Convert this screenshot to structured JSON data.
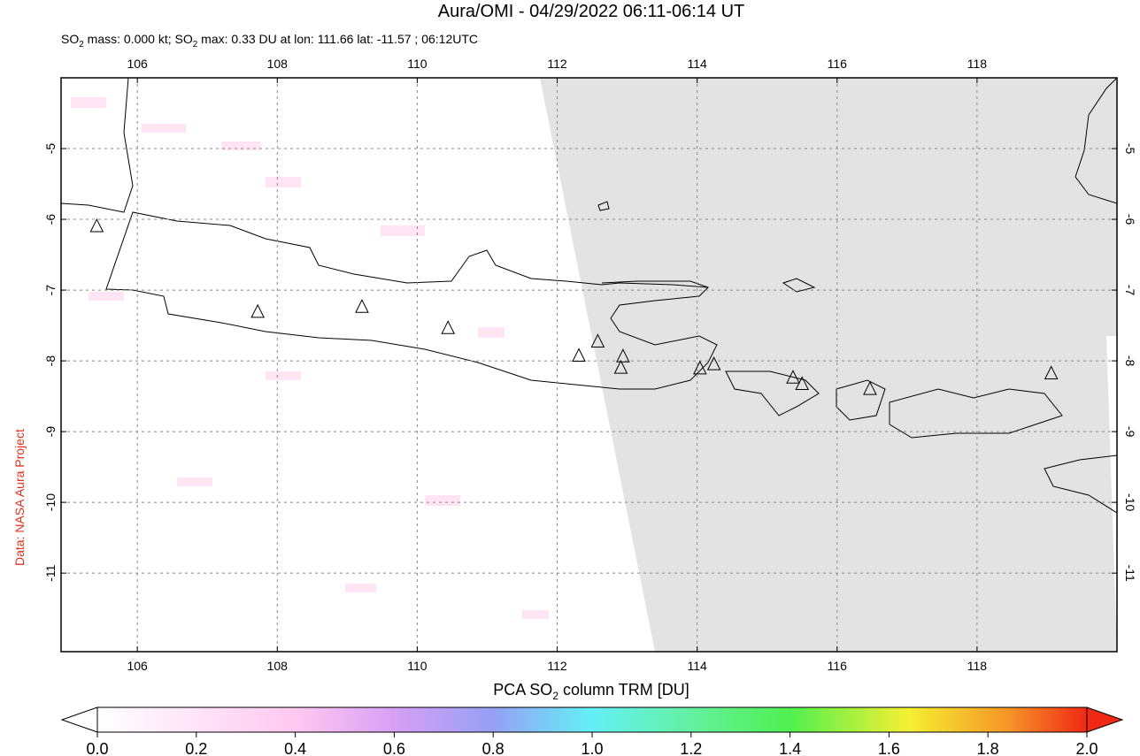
{
  "title": "Aura/OMI - 04/29/2022 06:11-06:14 UT",
  "subtitle": [
    "SO",
    "2",
    " mass: 0.000 kt; SO",
    "2",
    " max: 0.33 DU at lon: 111.66 lat: -11.57 ; 06:12UTC"
  ],
  "credit": "Data: NASA Aura Project",
  "map": {
    "xlim": [
      104.91,
      120.0
    ],
    "ylim": [
      -12.11,
      -4.0
    ],
    "xticks": [
      106,
      108,
      110,
      112,
      114,
      116,
      118
    ],
    "yticks": [
      -5,
      -6,
      -7,
      -8,
      -9,
      -10,
      -11
    ],
    "grid": true,
    "volcanoes": {
      "lon": [
        105.42,
        107.72,
        109.21,
        110.44,
        112.31,
        112.58,
        112.94,
        112.91,
        114.04,
        114.24,
        115.37,
        115.5,
        116.47,
        119.06
      ],
      "lat": [
        -6.1,
        -7.31,
        -7.24,
        -7.54,
        -7.93,
        -7.73,
        -7.94,
        -8.1,
        -8.11,
        -8.05,
        -8.24,
        -8.33,
        -8.4,
        -8.18
      ]
    }
  },
  "colorbar": {
    "label": [
      "PCA SO",
      "2",
      " column TRM [DU]"
    ],
    "lim": [
      0,
      2
    ],
    "ticks": [
      {
        "value": 0,
        "label": "0.0"
      },
      {
        "value": 0.2,
        "label": "0.2"
      },
      {
        "value": 0.4,
        "label": "0.4"
      },
      {
        "value": 0.6,
        "label": "0.6"
      },
      {
        "value": 0.8,
        "label": "0.8"
      },
      {
        "value": 1,
        "label": "1.0"
      },
      {
        "value": 1.2,
        "label": "1.2"
      },
      {
        "value": 1.4,
        "label": "1.4"
      },
      {
        "value": 1.6,
        "label": "1.6"
      },
      {
        "value": 1.8,
        "label": "1.8"
      },
      {
        "value": 2,
        "label": "2.0"
      }
    ]
  }
}
